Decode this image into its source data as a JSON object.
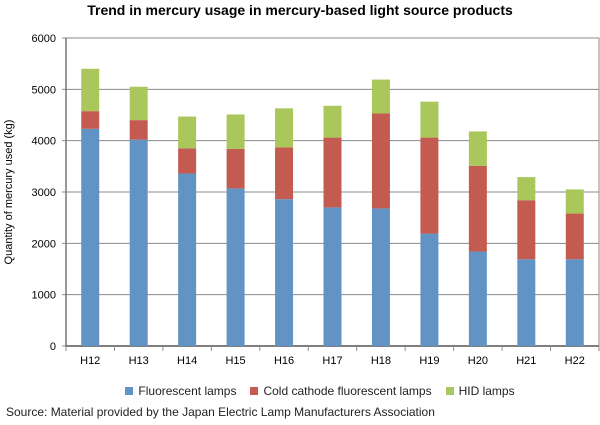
{
  "chart_data": {
    "type": "bar",
    "stacked": true,
    "title": "Trend in mercury usage in mercury-based light source products",
    "xlabel": "",
    "ylabel": "Quantity of mercury used (kg)",
    "ylim": [
      0,
      6000
    ],
    "yticks": [
      0,
      1000,
      2000,
      3000,
      4000,
      5000,
      6000
    ],
    "grid": true,
    "legend": "bottom",
    "categories": [
      "H12",
      "H13",
      "H14",
      "H15",
      "H16",
      "H17",
      "H18",
      "H19",
      "H20",
      "H21",
      "H22"
    ],
    "series": [
      {
        "name": "Fluorescent lamps",
        "color": "#6193c4",
        "values": [
          4230,
          4020,
          3360,
          3070,
          2860,
          2700,
          2680,
          2190,
          1840,
          1690,
          1690
        ]
      },
      {
        "name": "Cold cathode fluorescent lamps",
        "color": "#c35b50",
        "values": [
          345,
          380,
          490,
          770,
          1010,
          1360,
          1850,
          1870,
          1670,
          1150,
          890
        ]
      },
      {
        "name": "HID lamps",
        "color": "#a9c75b",
        "values": [
          825,
          650,
          620,
          670,
          760,
          620,
          660,
          700,
          670,
          450,
          470
        ]
      }
    ]
  },
  "source": "Source: Material provided by the Japan Electric Lamp Manufacturers Association"
}
